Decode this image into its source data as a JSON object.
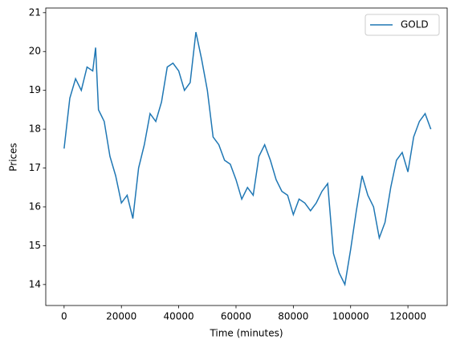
{
  "chart_data": {
    "type": "line",
    "x_label": "Time (minutes)",
    "y_label": "Prices",
    "x": [
      0,
      2000,
      4000,
      6000,
      8000,
      10000,
      11000,
      12000,
      14000,
      16000,
      18000,
      20000,
      22000,
      24000,
      26000,
      28000,
      30000,
      32000,
      34000,
      36000,
      38000,
      40000,
      42000,
      44000,
      46000,
      48000,
      50000,
      52000,
      54000,
      56000,
      58000,
      60000,
      62000,
      64000,
      66000,
      68000,
      70000,
      72000,
      74000,
      76000,
      78000,
      80000,
      82000,
      84000,
      86000,
      88000,
      90000,
      92000,
      94000,
      96000,
      98000,
      100000,
      102000,
      104000,
      106000,
      108000,
      110000,
      112000,
      114000,
      116000,
      118000,
      120000,
      122000,
      124000,
      126000,
      128000
    ],
    "series": [
      {
        "name": "GOLD",
        "color": "#1f77b4",
        "values": [
          17.5,
          18.8,
          19.3,
          19.0,
          19.6,
          19.5,
          20.1,
          18.5,
          18.2,
          17.3,
          16.8,
          16.1,
          16.3,
          15.7,
          17.0,
          17.6,
          18.4,
          18.2,
          18.7,
          19.6,
          19.7,
          19.5,
          19.0,
          19.2,
          20.5,
          19.8,
          19.0,
          17.8,
          17.6,
          17.2,
          17.1,
          16.7,
          16.2,
          16.5,
          16.3,
          17.3,
          17.6,
          17.2,
          16.7,
          16.4,
          16.3,
          15.8,
          16.2,
          16.1,
          15.9,
          16.1,
          16.4,
          16.6,
          14.8,
          14.3,
          14.0,
          14.9,
          15.9,
          16.8,
          16.3,
          16.0,
          15.2,
          15.6,
          16.5,
          17.2,
          17.4,
          16.9,
          17.8,
          18.2,
          18.4,
          18.0
        ]
      }
    ],
    "xlim": [
      -6400,
      133700
    ],
    "ylim": [
      13.46,
      21.12
    ],
    "xticks": [
      0,
      20000,
      40000,
      60000,
      80000,
      100000,
      120000
    ],
    "yticks": [
      14,
      15,
      16,
      17,
      18,
      19,
      20,
      21
    ],
    "legend": "upper right"
  }
}
